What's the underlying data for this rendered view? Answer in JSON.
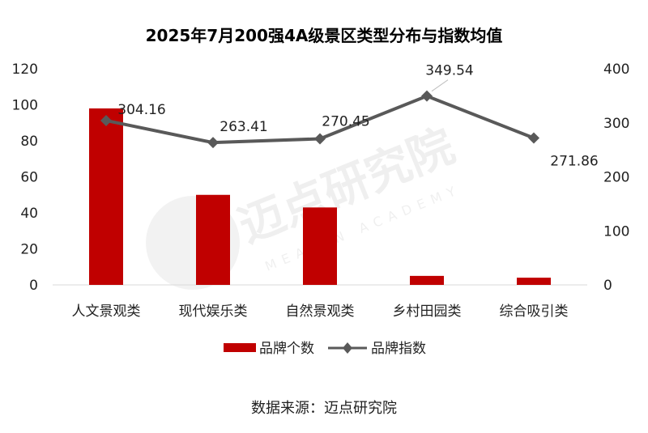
{
  "watermark": {
    "main": "迈点研究院",
    "sub": "MEADIN ACADEMY"
  },
  "source": "数据来源：迈点研究院",
  "chart_data": {
    "type": "bar",
    "title": "2025年7月200强4A级景区类型分布与指数均值",
    "categories": [
      "人文景观类",
      "现代娱乐类",
      "自然景观类",
      "乡村田园类",
      "综合吸引类"
    ],
    "ylim_left": [
      0,
      120
    ],
    "yticks_left": [
      0,
      20,
      40,
      60,
      80,
      100,
      120
    ],
    "ylim_right": [
      0,
      400
    ],
    "yticks_right": [
      0,
      100,
      200,
      300,
      400
    ],
    "legend_position": "bottom",
    "grid": false,
    "series": [
      {
        "name": "品牌个数",
        "type": "bar",
        "axis": "left",
        "color": "#C00000",
        "values": [
          98,
          50,
          43,
          5,
          4
        ]
      },
      {
        "name": "品牌指数",
        "type": "line",
        "axis": "right",
        "color": "#595959",
        "marker": "diamond",
        "values": [
          304.16,
          263.41,
          270.45,
          349.54,
          271.86
        ],
        "labels": [
          "304.16",
          "263.41",
          "270.45",
          "349.54",
          "271.86"
        ]
      }
    ]
  }
}
